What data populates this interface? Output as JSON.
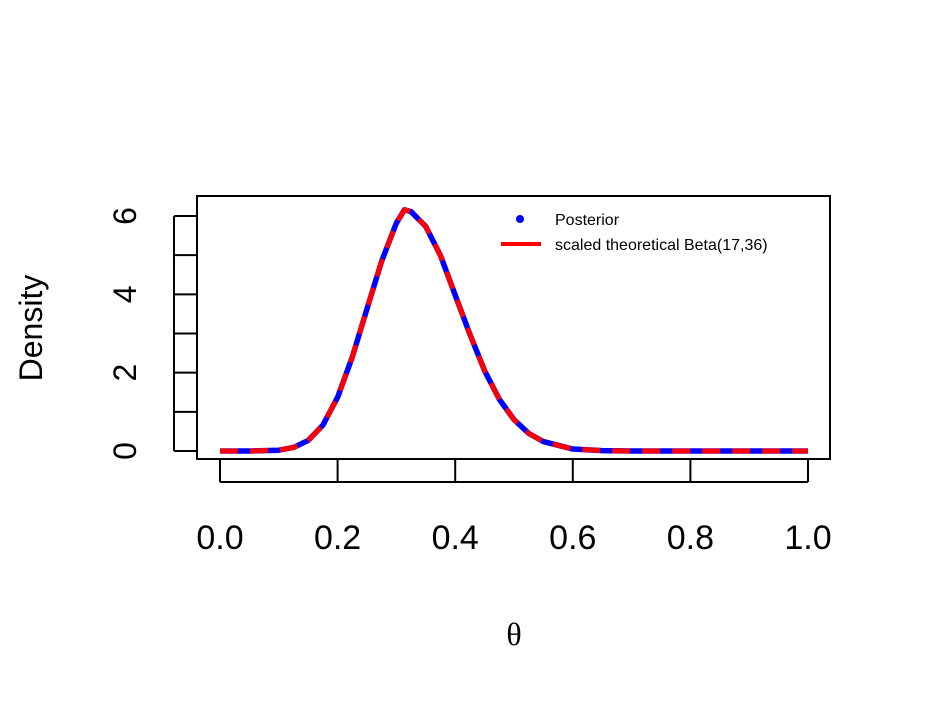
{
  "chart_data": {
    "type": "line",
    "xlabel": "θ",
    "ylabel": "Density",
    "xlim": [
      0,
      1
    ],
    "ylim": [
      0,
      6.25
    ],
    "x_ticks": [
      "0.0",
      "0.2",
      "0.4",
      "0.6",
      "0.8",
      "1.0"
    ],
    "x_tick_values": [
      0,
      0.2,
      0.4,
      0.6,
      0.8,
      1.0
    ],
    "y_ticks": [
      "0",
      "2",
      "4",
      "6"
    ],
    "y_tick_values": [
      0,
      2,
      4,
      6
    ],
    "y_minor_tick_values": [
      1,
      3,
      5
    ],
    "legend_position": "top-right",
    "series": [
      {
        "name": "Posterior",
        "style": "dotted-line",
        "color": "#0000FF",
        "x": [
          0.0,
          0.05,
          0.1,
          0.125,
          0.15,
          0.175,
          0.2,
          0.225,
          0.25,
          0.275,
          0.3,
          0.3137,
          0.325,
          0.35,
          0.375,
          0.4,
          0.425,
          0.45,
          0.475,
          0.5,
          0.525,
          0.55,
          0.6,
          0.65,
          0.7,
          0.8,
          0.9,
          1.0
        ],
        "y": [
          0.0,
          0.0,
          0.02,
          0.09,
          0.27,
          0.66,
          1.37,
          2.4,
          3.63,
          4.85,
          5.82,
          6.16,
          6.11,
          5.73,
          4.99,
          3.98,
          2.98,
          2.05,
          1.32,
          0.8,
          0.45,
          0.24,
          0.05,
          0.01,
          0.0,
          0.0,
          0.0,
          0.0
        ]
      },
      {
        "name": "scaled theoretical Beta(17,36)",
        "style": "dashed-line",
        "color": "#FF0000",
        "x": [
          0.0,
          0.05,
          0.1,
          0.125,
          0.15,
          0.175,
          0.2,
          0.225,
          0.25,
          0.275,
          0.3,
          0.3137,
          0.325,
          0.35,
          0.375,
          0.4,
          0.425,
          0.45,
          0.475,
          0.5,
          0.525,
          0.55,
          0.6,
          0.65,
          0.7,
          0.8,
          0.9,
          1.0
        ],
        "y": [
          0.0,
          0.0,
          0.02,
          0.09,
          0.27,
          0.66,
          1.37,
          2.4,
          3.63,
          4.85,
          5.82,
          6.16,
          6.11,
          5.73,
          4.99,
          3.98,
          2.98,
          2.05,
          1.32,
          0.8,
          0.45,
          0.24,
          0.05,
          0.01,
          0.0,
          0.0,
          0.0,
          0.0
        ]
      }
    ]
  }
}
